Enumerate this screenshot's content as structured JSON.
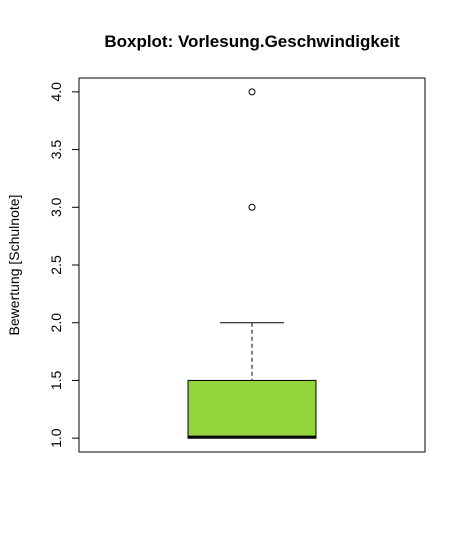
{
  "chart_data": {
    "type": "boxplot",
    "title": "Boxplot: Vorlesung.Geschwindigkeit",
    "xlabel": "",
    "ylabel": "Bewertung [Schulnote]",
    "ylim": [
      0.88,
      4.12
    ],
    "yticks": [
      "1.0",
      "1.5",
      "2.0",
      "2.5",
      "3.0",
      "3.5",
      "4.0"
    ],
    "box": {
      "whisker_low": 1.0,
      "q1": 1.0,
      "median": 1.0,
      "q3": 1.5,
      "whisker_high": 2.0,
      "outliers": [
        3.0,
        4.0
      ]
    },
    "box_color": "#94d43c",
    "grid": false,
    "legend": "none"
  }
}
